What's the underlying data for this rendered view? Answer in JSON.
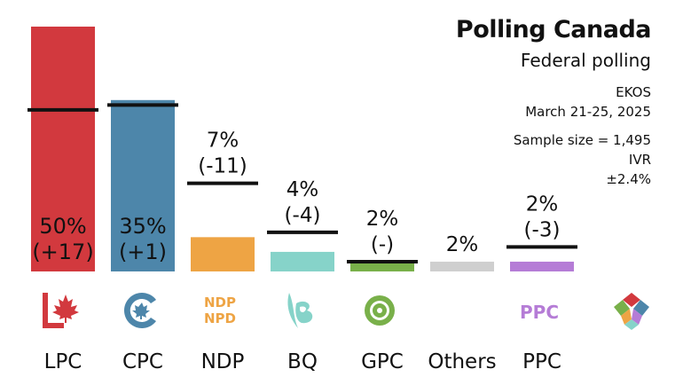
{
  "header": {
    "title": "Polling Canada",
    "subtitle": "Federal polling",
    "pollster": "EKOS",
    "dates": "March 21-25, 2025",
    "sample": "Sample size = 1,495",
    "method": "IVR",
    "margin": "±2.4%"
  },
  "logos": {
    "ndp_line1": "NDP",
    "ndp_line2": "NPD",
    "ppc": "PPC"
  },
  "colors": {
    "LPC": "#d2393e",
    "CPC": "#4d86aa",
    "NDP": "#eea444",
    "BQ": "#86d3c9",
    "GPC": "#79b04a",
    "Others": "#cfcfcf",
    "PPC": "#b57cd6",
    "marker": "#111111"
  },
  "chart_data": {
    "type": "bar",
    "title": "Polling Canada",
    "subtitle": "Federal polling",
    "categories": [
      "LPC",
      "CPC",
      "NDP",
      "BQ",
      "GPC",
      "Others",
      "PPC"
    ],
    "values": [
      50,
      35,
      7,
      4,
      2,
      2,
      2
    ],
    "previous_values": [
      33,
      34,
      18,
      8,
      2,
      null,
      5
    ],
    "changes": [
      "+17",
      "+1",
      "-11",
      "-4",
      "-",
      null,
      "-3"
    ],
    "value_labels": [
      "50%",
      "35%",
      "7%",
      "4%",
      "2%",
      "2%",
      "2%"
    ],
    "change_labels": [
      "(+17)",
      "(+1)",
      "(-11)",
      "(-4)",
      "(-)",
      "",
      "(-3)"
    ],
    "ylim": [
      0,
      50
    ]
  }
}
